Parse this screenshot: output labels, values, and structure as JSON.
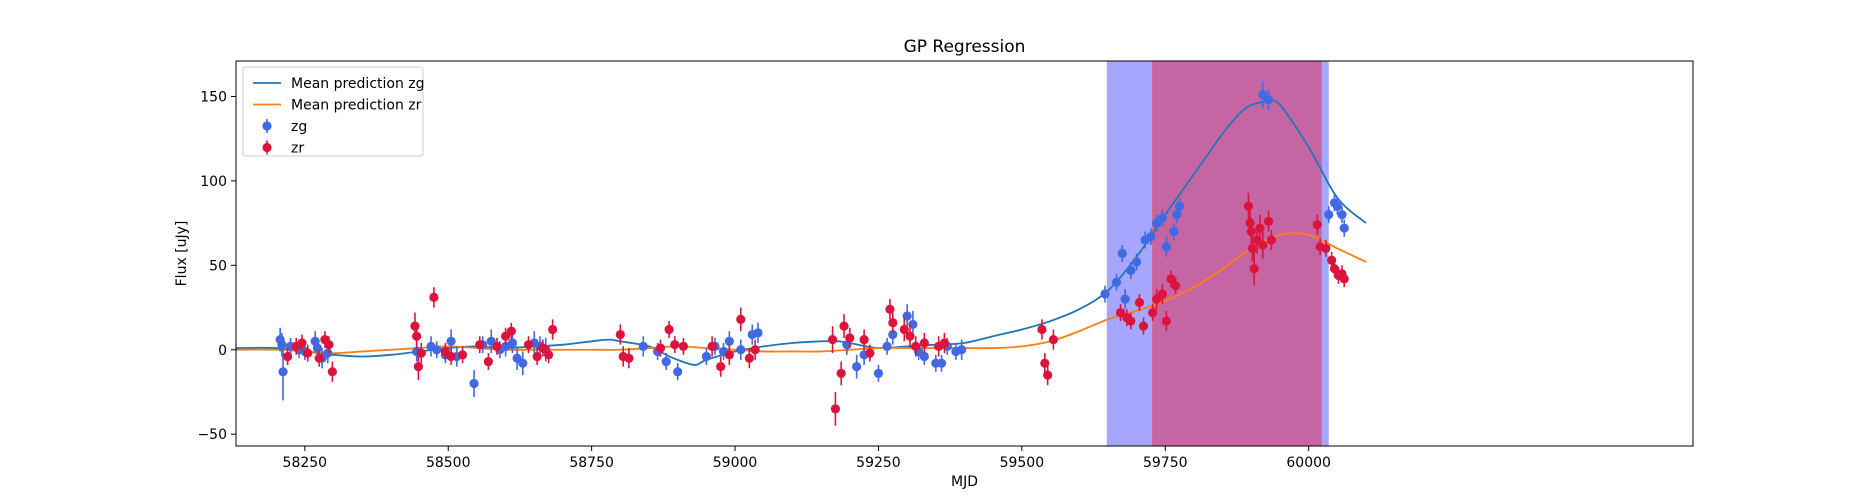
{
  "chart_data": {
    "type": "scatter",
    "title": "GP Regression",
    "xlabel": "MJD",
    "ylabel": "Flux [uJy]",
    "xlim": [
      58130,
      60670
    ],
    "ylim": [
      -57,
      171
    ],
    "xticks": [
      58250,
      58500,
      58750,
      59000,
      59250,
      59500,
      59750,
      60000
    ],
    "yticks": [
      -50,
      0,
      50,
      100,
      150
    ],
    "grid": false,
    "legend_position": "top-left",
    "colors": {
      "zg_line": "#1f77b4",
      "zr_line": "#ff7f0e",
      "zg_points": "#4169e1",
      "zr_points": "#dc143c",
      "span_blue": "#a6a6ff",
      "span_overlap": "#c665a4",
      "span_overlap_edge": "#e06080"
    },
    "shaded_regions": [
      {
        "band": "zg",
        "x": [
          59648,
          60035
        ]
      },
      {
        "band": "zr",
        "x": [
          59728,
          60022
        ]
      }
    ],
    "series": [
      {
        "name": "Mean prediction zg",
        "kind": "line",
        "x": [
          58130,
          58200,
          58250,
          58300,
          58350,
          58400,
          58450,
          58500,
          58550,
          58600,
          58650,
          58700,
          58750,
          58780,
          58800,
          58850,
          58880,
          58900,
          58930,
          58950,
          59000,
          59050,
          59100,
          59150,
          59180,
          59200,
          59250,
          59300,
          59350,
          59400,
          59450,
          59500,
          59550,
          59600,
          59650,
          59700,
          59750,
          59800,
          59850,
          59880,
          59900,
          59930,
          59950,
          60000,
          60050,
          60100
        ],
        "y": [
          1,
          1,
          -1,
          -3,
          -4,
          -3,
          -1,
          1,
          2,
          1,
          2,
          3,
          5,
          6,
          5,
          2,
          -3,
          -6,
          -9,
          -6,
          -1,
          2,
          4,
          5,
          5,
          4,
          1,
          2,
          3,
          4,
          8,
          12,
          17,
          24,
          35,
          55,
          80,
          104,
          128,
          140,
          145,
          147,
          145,
          120,
          90,
          75
        ]
      },
      {
        "name": "Mean prediction zr",
        "kind": "line",
        "x": [
          58130,
          58200,
          58250,
          58300,
          58350,
          58400,
          58450,
          58500,
          58550,
          58600,
          58650,
          58700,
          58750,
          58800,
          58850,
          58900,
          58950,
          59000,
          59050,
          59100,
          59150,
          59200,
          59250,
          59300,
          59350,
          59400,
          59450,
          59500,
          59550,
          59600,
          59650,
          59700,
          59750,
          59800,
          59850,
          59900,
          59950,
          60000,
          60050,
          60100
        ],
        "y": [
          0,
          0,
          -1,
          -2,
          -1,
          0,
          1,
          2,
          1,
          0,
          0,
          0,
          0,
          0,
          1,
          2,
          1,
          0,
          -1,
          -1,
          -1,
          0,
          1,
          1,
          1,
          1,
          1,
          2,
          5,
          11,
          18,
          23,
          29,
          37,
          48,
          60,
          68,
          68,
          60,
          52
        ]
      },
      {
        "name": "zg",
        "kind": "errorbar",
        "points": [
          [
            58207,
            6,
            7
          ],
          [
            58210,
            3,
            7
          ],
          [
            58212,
            -13,
            17
          ],
          [
            58225,
            2,
            5
          ],
          [
            58240,
            0,
            5
          ],
          [
            58250,
            -1,
            5
          ],
          [
            58268,
            5,
            6
          ],
          [
            58272,
            1,
            6
          ],
          [
            58280,
            -5,
            6
          ],
          [
            58290,
            -2,
            6
          ],
          [
            58445,
            -1,
            6
          ],
          [
            58470,
            2,
            6
          ],
          [
            58480,
            0,
            5
          ],
          [
            58495,
            -3,
            5
          ],
          [
            58505,
            5,
            7
          ],
          [
            58515,
            -4,
            6
          ],
          [
            58545,
            -20,
            8
          ],
          [
            58560,
            3,
            5
          ],
          [
            58575,
            5,
            7
          ],
          [
            58590,
            0,
            5
          ],
          [
            58600,
            2,
            6
          ],
          [
            58612,
            4,
            6
          ],
          [
            58620,
            -5,
            7
          ],
          [
            58630,
            -8,
            7
          ],
          [
            58650,
            4,
            7
          ],
          [
            58660,
            2,
            6
          ],
          [
            58670,
            0,
            7
          ],
          [
            58840,
            2,
            6
          ],
          [
            58865,
            -1,
            5
          ],
          [
            58880,
            -7,
            5
          ],
          [
            58900,
            -13,
            5
          ],
          [
            58950,
            -4,
            5
          ],
          [
            58965,
            2,
            5
          ],
          [
            58980,
            -1,
            5
          ],
          [
            58990,
            5,
            6
          ],
          [
            59010,
            0,
            6
          ],
          [
            59030,
            9,
            6
          ],
          [
            59040,
            10,
            6
          ],
          [
            59195,
            3,
            6
          ],
          [
            59212,
            -10,
            7
          ],
          [
            59225,
            -3,
            6
          ],
          [
            59250,
            -14,
            5
          ],
          [
            59265,
            2,
            5
          ],
          [
            59275,
            9,
            6
          ],
          [
            59300,
            20,
            7
          ],
          [
            59310,
            15,
            8
          ],
          [
            59320,
            -1,
            5
          ],
          [
            59330,
            -4,
            5
          ],
          [
            59350,
            -8,
            5
          ],
          [
            59360,
            -8,
            5
          ],
          [
            59370,
            2,
            5
          ],
          [
            59385,
            -1,
            5
          ],
          [
            59395,
            0,
            6
          ],
          [
            59645,
            33,
            5
          ],
          [
            59665,
            40,
            5
          ],
          [
            59675,
            57,
            5
          ],
          [
            59680,
            30,
            6
          ],
          [
            59690,
            47,
            5
          ],
          [
            59700,
            52,
            5
          ],
          [
            59715,
            65,
            5
          ],
          [
            59725,
            67,
            5
          ],
          [
            59735,
            75,
            5
          ],
          [
            59745,
            78,
            5
          ],
          [
            59752,
            61,
            6
          ],
          [
            59765,
            70,
            5
          ],
          [
            59770,
            80,
            5
          ],
          [
            59775,
            85,
            5
          ],
          [
            59920,
            151,
            8
          ],
          [
            59930,
            148,
            6
          ],
          [
            60035,
            80,
            5
          ],
          [
            60045,
            87,
            5
          ],
          [
            60050,
            85,
            5
          ],
          [
            60058,
            80,
            5
          ],
          [
            60062,
            72,
            5
          ]
        ]
      },
      {
        "name": "zr",
        "kind": "errorbar",
        "points": [
          [
            58220,
            -4,
            5
          ],
          [
            58235,
            2,
            5
          ],
          [
            58245,
            4,
            5
          ],
          [
            58255,
            -2,
            5
          ],
          [
            58275,
            -5,
            5
          ],
          [
            58285,
            6,
            5
          ],
          [
            58292,
            3,
            5
          ],
          [
            58298,
            -13,
            6
          ],
          [
            58442,
            14,
            8
          ],
          [
            58445,
            8,
            8
          ],
          [
            58448,
            -10,
            8
          ],
          [
            58453,
            -2,
            6
          ],
          [
            58475,
            31,
            6
          ],
          [
            58495,
            -1,
            5
          ],
          [
            58505,
            -4,
            5
          ],
          [
            58525,
            -3,
            5
          ],
          [
            58555,
            3,
            5
          ],
          [
            58570,
            -7,
            5
          ],
          [
            58585,
            2,
            5
          ],
          [
            58600,
            8,
            5
          ],
          [
            58610,
            11,
            5
          ],
          [
            58640,
            3,
            5
          ],
          [
            58655,
            -4,
            5
          ],
          [
            58665,
            1,
            5
          ],
          [
            58675,
            -3,
            5
          ],
          [
            58682,
            12,
            6
          ],
          [
            58800,
            9,
            6
          ],
          [
            58805,
            -4,
            6
          ],
          [
            58815,
            -5,
            6
          ],
          [
            58870,
            1,
            5
          ],
          [
            58885,
            12,
            5
          ],
          [
            58895,
            3,
            5
          ],
          [
            58910,
            2,
            5
          ],
          [
            58960,
            2,
            6
          ],
          [
            58975,
            -10,
            6
          ],
          [
            58990,
            -3,
            6
          ],
          [
            59010,
            18,
            7
          ],
          [
            59025,
            -5,
            6
          ],
          [
            59035,
            0,
            6
          ],
          [
            59170,
            6,
            8
          ],
          [
            59175,
            -35,
            10
          ],
          [
            59185,
            -14,
            7
          ],
          [
            59190,
            14,
            7
          ],
          [
            59200,
            7,
            6
          ],
          [
            59225,
            6,
            6
          ],
          [
            59235,
            -2,
            5
          ],
          [
            59270,
            24,
            6
          ],
          [
            59275,
            16,
            6
          ],
          [
            59295,
            12,
            7
          ],
          [
            59305,
            8,
            7
          ],
          [
            59315,
            2,
            6
          ],
          [
            59330,
            4,
            6
          ],
          [
            59355,
            2,
            6
          ],
          [
            59365,
            4,
            6
          ],
          [
            59535,
            12,
            6
          ],
          [
            59540,
            -8,
            6
          ],
          [
            59545,
            -15,
            6
          ],
          [
            59555,
            6,
            6
          ],
          [
            59672,
            22,
            5
          ],
          [
            59683,
            19,
            5
          ],
          [
            59690,
            17,
            5
          ],
          [
            59705,
            28,
            5
          ],
          [
            59712,
            14,
            5
          ],
          [
            59728,
            22,
            5
          ],
          [
            59735,
            30,
            6
          ],
          [
            59745,
            33,
            6
          ],
          [
            59752,
            17,
            6
          ],
          [
            59760,
            42,
            5
          ],
          [
            59768,
            38,
            5
          ],
          [
            59895,
            85,
            8
          ],
          [
            59898,
            75,
            8
          ],
          [
            59900,
            70,
            8
          ],
          [
            59902,
            60,
            8
          ],
          [
            59905,
            48,
            10
          ],
          [
            59910,
            65,
            8
          ],
          [
            59915,
            72,
            8
          ],
          [
            59920,
            62,
            8
          ],
          [
            59930,
            76,
            6
          ],
          [
            59935,
            65,
            6
          ],
          [
            60015,
            74,
            6
          ],
          [
            60020,
            61,
            5
          ],
          [
            60030,
            60,
            5
          ],
          [
            60040,
            53,
            5
          ],
          [
            60045,
            48,
            5
          ],
          [
            60052,
            44,
            5
          ],
          [
            60058,
            45,
            5
          ],
          [
            60062,
            42,
            5
          ]
        ]
      }
    ]
  }
}
